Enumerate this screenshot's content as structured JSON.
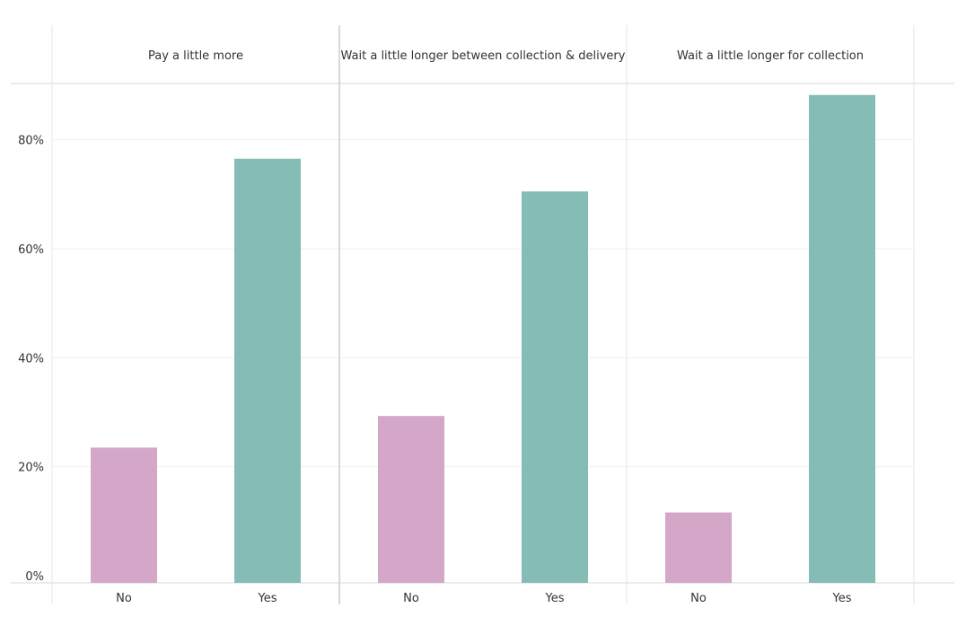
{
  "chart_data": {
    "type": "bar",
    "panels": [
      {
        "title": "Pay a little more",
        "categories": [
          "No",
          "Yes"
        ],
        "values": [
          23.5,
          76.5
        ]
      },
      {
        "title": "Wait a little longer between collection & delivery",
        "categories": [
          "No",
          "Yes"
        ],
        "values": [
          29.3,
          70.5
        ]
      },
      {
        "title": "Wait a little longer for collection",
        "categories": [
          "No",
          "Yes"
        ],
        "values": [
          11.6,
          88.2
        ]
      }
    ],
    "ylim": [
      0,
      90
    ],
    "yticks": [
      0,
      20,
      40,
      60,
      80
    ],
    "ytick_labels": [
      "0%",
      "20%",
      "40%",
      "60%",
      "80%"
    ],
    "colors": {
      "No": "#d4a6c8",
      "Yes": "#86bcb6"
    },
    "grid": true,
    "legend": "none"
  }
}
